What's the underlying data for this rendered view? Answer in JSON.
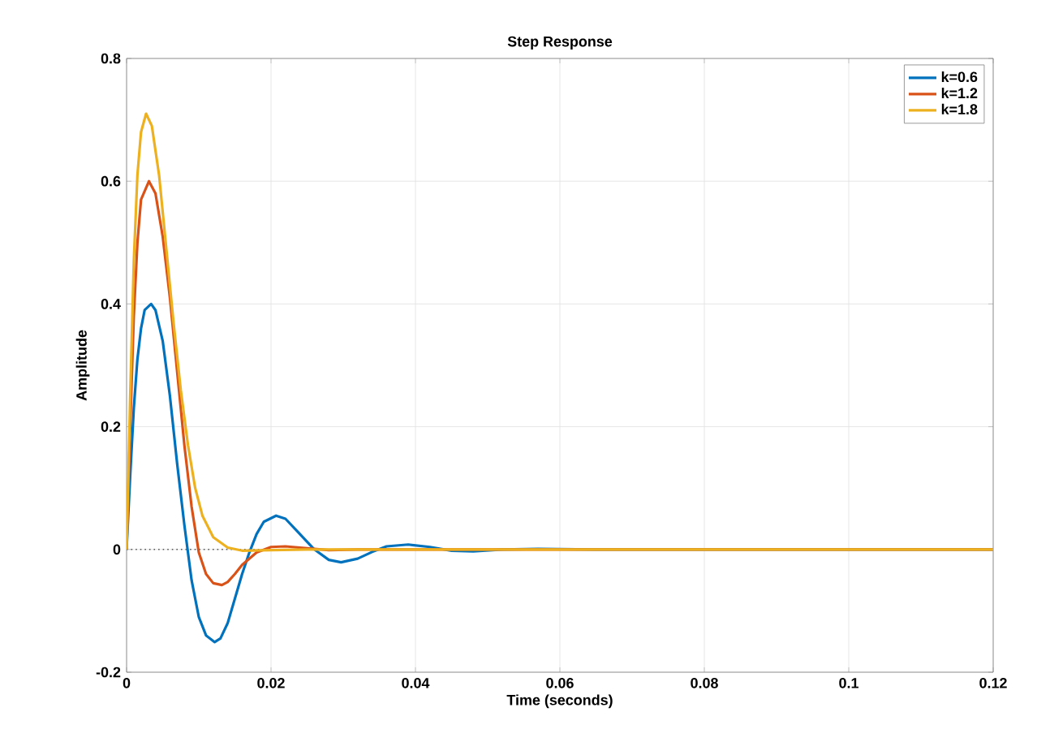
{
  "chart_data": {
    "type": "line",
    "title": "Step Response",
    "xlabel": "Time (seconds)",
    "ylabel": "Amplitude",
    "xlim": [
      0,
      0.12
    ],
    "xticks": [
      0,
      0.02,
      0.04,
      0.06,
      0.08,
      0.1,
      0.12
    ],
    "ylim": [
      -0.2,
      0.8
    ],
    "yticks": [
      -0.2,
      0,
      0.2,
      0.4,
      0.6,
      0.8
    ],
    "grid": true,
    "legend": "top right",
    "marker": "none",
    "line_style": "solid",
    "ref_lines": [
      {
        "axis": "y",
        "value": 0,
        "color": "#555555",
        "line_style": "dotted"
      }
    ],
    "series": [
      {
        "name": "k=0.6",
        "color": "#0072bd",
        "x": [
          0,
          0.0005,
          0.001,
          0.0015,
          0.002,
          0.0025,
          0.0034,
          0.004,
          0.005,
          0.006,
          0.007,
          0.008,
          0.009,
          0.01,
          0.011,
          0.0122,
          0.013,
          0.014,
          0.015,
          0.016,
          0.017,
          0.018,
          0.019,
          0.0207,
          0.022,
          0.024,
          0.026,
          0.028,
          0.0297,
          0.032,
          0.034,
          0.036,
          0.039,
          0.042,
          0.045,
          0.048,
          0.052,
          0.057,
          0.065,
          0.12
        ],
        "values": [
          0,
          0.12,
          0.23,
          0.31,
          0.36,
          0.39,
          0.4,
          0.39,
          0.34,
          0.25,
          0.14,
          0.04,
          -0.05,
          -0.11,
          -0.14,
          -0.151,
          -0.145,
          -0.12,
          -0.08,
          -0.04,
          -0.005,
          0.025,
          0.045,
          0.055,
          0.05,
          0.025,
          0,
          -0.017,
          -0.021,
          -0.015,
          -0.004,
          0.005,
          0.008,
          0.004,
          -0.002,
          -0.003,
          0,
          0.001,
          0,
          0
        ]
      },
      {
        "name": "k=1.2",
        "color": "#d95319",
        "x": [
          0,
          0.0005,
          0.001,
          0.0015,
          0.002,
          0.0031,
          0.004,
          0.005,
          0.006,
          0.007,
          0.008,
          0.009,
          0.01,
          0.011,
          0.012,
          0.0132,
          0.014,
          0.015,
          0.016,
          0.018,
          0.02,
          0.022,
          0.025,
          0.028,
          0.032,
          0.12
        ],
        "values": [
          0,
          0.2,
          0.38,
          0.5,
          0.57,
          0.6,
          0.58,
          0.51,
          0.41,
          0.29,
          0.17,
          0.07,
          -0.005,
          -0.04,
          -0.055,
          -0.058,
          -0.053,
          -0.04,
          -0.025,
          -0.005,
          0.004,
          0.005,
          0.002,
          -0.001,
          0,
          0
        ]
      },
      {
        "name": "k=1.8",
        "color": "#edb120",
        "x": [
          0,
          0.0005,
          0.001,
          0.0015,
          0.002,
          0.0027,
          0.0035,
          0.0045,
          0.0055,
          0.0065,
          0.0075,
          0.0085,
          0.0095,
          0.0105,
          0.012,
          0.014,
          0.016,
          0.02,
          0.025,
          0.12
        ],
        "values": [
          0,
          0.25,
          0.47,
          0.61,
          0.68,
          0.71,
          0.69,
          0.61,
          0.49,
          0.37,
          0.26,
          0.17,
          0.1,
          0.055,
          0.02,
          0.003,
          -0.002,
          -0.001,
          0,
          0
        ]
      }
    ]
  }
}
